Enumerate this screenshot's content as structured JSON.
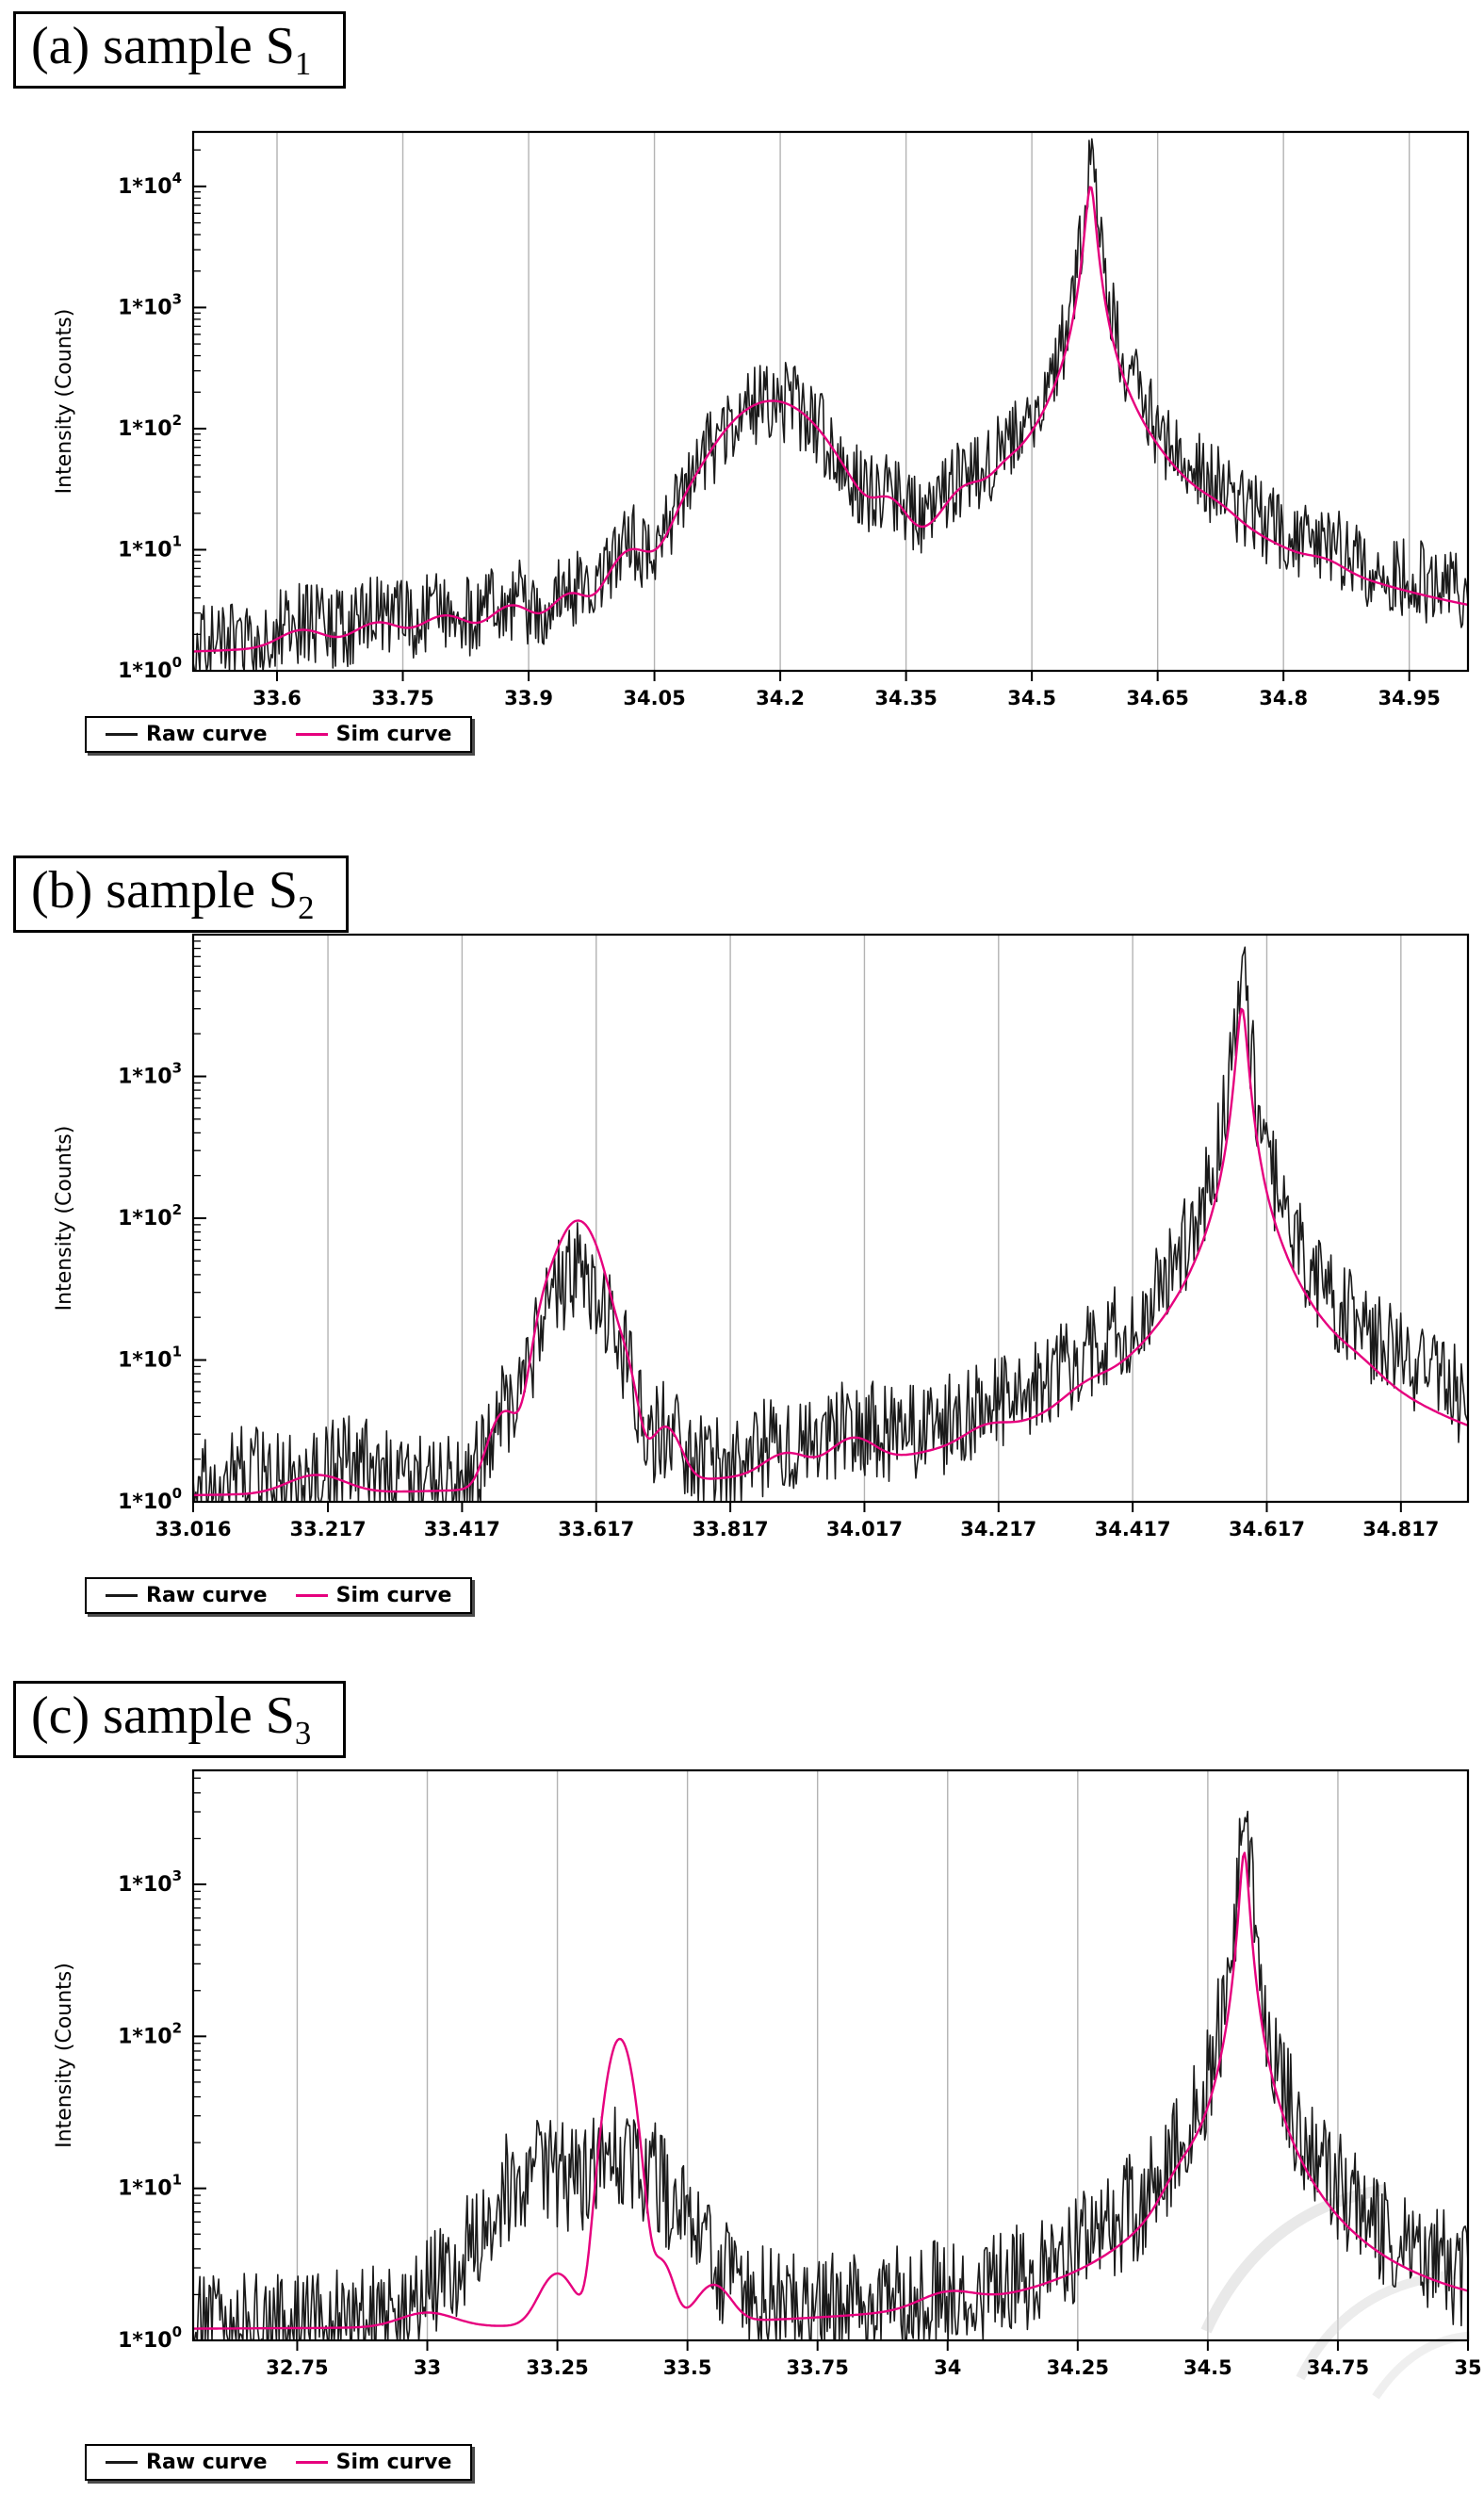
{
  "chart_data": [
    {
      "type": "line",
      "panel": "a",
      "label_prefix": "(a) sample S",
      "label_sub": "1",
      "ylabel": "Intensity (Counts)",
      "y_tick_prefix": "1*10",
      "x_min": 33.5,
      "x_max": 35.02,
      "y_exp_min": 0,
      "y_exp_max": 4.45,
      "y_ticks_exp": [
        0,
        1,
        2,
        3,
        4
      ],
      "grid": "vertical",
      "legend_position": "bottom-left",
      "x_ticks": [
        {
          "v": 33.6,
          "t": "33.6"
        },
        {
          "v": 33.75,
          "t": "33.75"
        },
        {
          "v": 33.9,
          "t": "33.9"
        },
        {
          "v": 34.05,
          "t": "34.05"
        },
        {
          "v": 34.2,
          "t": "34.2"
        },
        {
          "v": 34.35,
          "t": "34.35"
        },
        {
          "v": 34.5,
          "t": "34.5"
        },
        {
          "v": 34.65,
          "t": "34.65"
        },
        {
          "v": 34.8,
          "t": "34.8"
        },
        {
          "v": 34.95,
          "t": "34.95"
        }
      ],
      "series": [
        {
          "name": "Raw curve",
          "color": "#1a1a1a",
          "width": 1.6,
          "noise": 0.34,
          "seed": 11,
          "n": 950,
          "base": 1.05,
          "peaks": [
            [
              33.63,
              0.7,
              0.025,
              "g"
            ],
            [
              33.72,
              0.8,
              0.025,
              "g"
            ],
            [
              33.8,
              1.0,
              0.025,
              "g"
            ],
            [
              33.88,
              1.4,
              0.022,
              "g"
            ],
            [
              33.95,
              2.2,
              0.02,
              "g"
            ],
            [
              34.02,
              6.5,
              0.022,
              "g"
            ],
            [
              34.09,
              3,
              0.015,
              "g"
            ],
            [
              34.19,
              165,
              0.052,
              "g"
            ],
            [
              34.33,
              13,
              0.018,
              "g"
            ],
            [
              34.42,
              11,
              0.02,
              "g"
            ],
            [
              34.47,
              7,
              0.015,
              "g"
            ],
            [
              34.57,
              18000,
              0.0055,
              "l"
            ],
            [
              34.57,
              60,
              0.05,
              "l"
            ],
            [
              34.72,
              2.5,
              0.02,
              "g"
            ],
            [
              34.85,
              1.0,
              0.02,
              "g"
            ]
          ]
        },
        {
          "name": "Sim curve",
          "color": "#e6007e",
          "width": 2.4,
          "noise": 0,
          "seed": 1,
          "n": 800,
          "base": 1.0,
          "peaks": [
            [
              33.63,
              0.6,
              0.025,
              "g"
            ],
            [
              33.72,
              0.8,
              0.025,
              "g"
            ],
            [
              33.8,
              1.0,
              0.025,
              "g"
            ],
            [
              33.88,
              1.4,
              0.022,
              "g"
            ],
            [
              33.95,
              2.0,
              0.02,
              "g"
            ],
            [
              34.02,
              6.5,
              0.022,
              "g"
            ],
            [
              34.09,
              2.5,
              0.015,
              "g"
            ],
            [
              34.19,
              165,
              0.052,
              "g"
            ],
            [
              34.33,
              13,
              0.018,
              "g"
            ],
            [
              34.42,
              11,
              0.02,
              "g"
            ],
            [
              34.47,
              7,
              0.015,
              "g"
            ],
            [
              34.57,
              10000,
              0.006,
              "l"
            ],
            [
              34.57,
              60,
              0.05,
              "l"
            ],
            [
              34.72,
              2.5,
              0.02,
              "g"
            ],
            [
              34.85,
              1.0,
              0.02,
              "g"
            ]
          ]
        }
      ]
    },
    {
      "type": "line",
      "panel": "b",
      "label_prefix": "(b) sample S",
      "label_sub": "2",
      "ylabel": "Intensity (Counts)",
      "y_tick_prefix": "1*10",
      "x_min": 33.016,
      "x_max": 34.917,
      "y_exp_min": 0,
      "y_exp_max": 4.0,
      "y_ticks_exp": [
        0,
        1,
        2,
        3
      ],
      "grid": "vertical",
      "legend_position": "bottom-left",
      "x_ticks": [
        {
          "v": 33.016,
          "t": "33.016"
        },
        {
          "v": 33.217,
          "t": "33.217"
        },
        {
          "v": 33.417,
          "t": "33.417"
        },
        {
          "v": 33.617,
          "t": "33.617"
        },
        {
          "v": 33.817,
          "t": "33.817"
        },
        {
          "v": 34.017,
          "t": "34.017"
        },
        {
          "v": 34.217,
          "t": "34.217"
        },
        {
          "v": 34.417,
          "t": "34.417"
        },
        {
          "v": 34.617,
          "t": "34.617"
        },
        {
          "v": 34.817,
          "t": "34.817"
        }
      ],
      "series": [
        {
          "name": "Raw curve",
          "color": "#1a1a1a",
          "width": 1.6,
          "noise": 0.35,
          "seed": 22,
          "n": 950,
          "base": 1.0,
          "peaks": [
            [
              33.1,
              0.5,
              0.03,
              "g"
            ],
            [
              33.25,
              0.6,
              0.03,
              "g"
            ],
            [
              33.48,
              3,
              0.02,
              "g"
            ],
            [
              33.54,
              7,
              0.015,
              "g"
            ],
            [
              33.59,
              40,
              0.035,
              "g"
            ],
            [
              33.66,
              4,
              0.015,
              "g"
            ],
            [
              33.72,
              1.5,
              0.02,
              "g"
            ],
            [
              33.9,
              0.7,
              0.03,
              "g"
            ],
            [
              34.0,
              1.0,
              0.03,
              "g"
            ],
            [
              34.25,
              0.8,
              0.03,
              "g"
            ],
            [
              34.35,
              1.2,
              0.03,
              "g"
            ],
            [
              34.58,
              7500,
              0.007,
              "l"
            ],
            [
              34.58,
              35,
              0.06,
              "l"
            ],
            [
              34.75,
              1.2,
              0.03,
              "g"
            ]
          ]
        },
        {
          "name": "Sim curve",
          "color": "#e6007e",
          "width": 2.4,
          "noise": 0,
          "seed": 2,
          "n": 800,
          "base": 1.0,
          "peaks": [
            [
              33.2,
              0.4,
              0.04,
              "g"
            ],
            [
              33.48,
              3,
              0.02,
              "g"
            ],
            [
              33.54,
              8,
              0.015,
              "g"
            ],
            [
              33.59,
              95,
              0.03,
              "g"
            ],
            [
              33.66,
              5,
              0.015,
              "g"
            ],
            [
              33.72,
              2,
              0.02,
              "g"
            ],
            [
              33.9,
              0.6,
              0.03,
              "g"
            ],
            [
              34.0,
              1.0,
              0.03,
              "g"
            ],
            [
              34.2,
              0.6,
              0.03,
              "g"
            ],
            [
              34.35,
              1.0,
              0.03,
              "g"
            ],
            [
              34.58,
              3000,
              0.008,
              "l"
            ],
            [
              34.58,
              25,
              0.06,
              "l"
            ],
            [
              34.75,
              1.0,
              0.03,
              "g"
            ]
          ]
        }
      ]
    },
    {
      "type": "line",
      "panel": "c",
      "label_prefix": "(c) sample S",
      "label_sub": "3",
      "ylabel": "Intensity (Counts)",
      "y_tick_prefix": "1*10",
      "x_min": 32.55,
      "x_max": 35.0,
      "y_exp_min": 0,
      "y_exp_max": 3.75,
      "y_ticks_exp": [
        0,
        1,
        2,
        3
      ],
      "grid": "vertical",
      "legend_position": "bottom-left",
      "watermark": true,
      "x_ticks": [
        {
          "v": 32.75,
          "t": "32.75"
        },
        {
          "v": 33.0,
          "t": "33"
        },
        {
          "v": 33.25,
          "t": "33.25"
        },
        {
          "v": 33.5,
          "t": "33.5"
        },
        {
          "v": 33.75,
          "t": "33.75"
        },
        {
          "v": 34.0,
          "t": "34"
        },
        {
          "v": 34.25,
          "t": "34.25"
        },
        {
          "v": 34.5,
          "t": "34.5"
        },
        {
          "v": 34.75,
          "t": "34.75"
        },
        {
          "v": 35.0,
          "t": "35"
        }
      ],
      "series": [
        {
          "name": "Raw curve",
          "color": "#1a1a1a",
          "width": 1.6,
          "noise": 0.38,
          "seed": 33,
          "n": 950,
          "base": 1.1,
          "peaks": [
            [
              33.3,
              11,
              0.13,
              "g"
            ],
            [
              33.15,
              3,
              0.02,
              "g"
            ],
            [
              33.22,
              4,
              0.02,
              "g"
            ],
            [
              33.37,
              6,
              0.02,
              "g"
            ],
            [
              33.44,
              4,
              0.02,
              "g"
            ],
            [
              33.52,
              3,
              0.02,
              "g"
            ],
            [
              34.45,
              1.5,
              0.03,
              "g"
            ],
            [
              34.57,
              3800,
              0.008,
              "l"
            ],
            [
              34.57,
              18,
              0.05,
              "l"
            ]
          ]
        },
        {
          "name": "Sim curve",
          "color": "#e6007e",
          "width": 2.4,
          "noise": 0,
          "seed": 3,
          "n": 800,
          "base": 1.15,
          "peaks": [
            [
              33.0,
              0.3,
              0.05,
              "g"
            ],
            [
              33.25,
              1.5,
              0.03,
              "g"
            ],
            [
              33.37,
              95,
              0.022,
              "g"
            ],
            [
              33.45,
              2.0,
              0.02,
              "g"
            ],
            [
              33.55,
              1.0,
              0.03,
              "g"
            ],
            [
              34.0,
              0.4,
              0.05,
              "g"
            ],
            [
              34.45,
              2.5,
              0.03,
              "g"
            ],
            [
              34.57,
              1600,
              0.009,
              "l"
            ],
            [
              34.57,
              20,
              0.05,
              "l"
            ]
          ]
        }
      ]
    }
  ]
}
